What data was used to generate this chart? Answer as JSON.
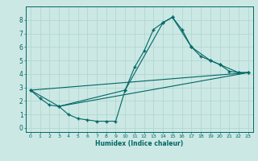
{
  "xlabel": "Humidex (Indice chaleur)",
  "bg_color": "#cce8e4",
  "line_color": "#006666",
  "grid_color": "#b0d8d0",
  "xlim": [
    -0.5,
    23.5
  ],
  "ylim": [
    -0.3,
    9.0
  ],
  "line1_x": [
    0,
    1,
    2,
    3,
    4,
    5,
    6,
    7,
    8,
    9,
    10,
    11,
    12,
    13,
    14,
    15,
    16,
    17,
    18,
    19,
    20,
    21,
    22,
    23
  ],
  "line1_y": [
    2.8,
    2.2,
    1.7,
    1.6,
    1.0,
    0.7,
    0.6,
    0.5,
    0.5,
    0.5,
    2.8,
    4.5,
    5.7,
    7.3,
    7.8,
    8.2,
    7.3,
    6.0,
    5.3,
    5.0,
    4.7,
    4.2,
    4.1,
    4.1
  ],
  "line2_x": [
    0,
    3,
    10,
    14,
    15,
    17,
    19,
    20,
    22,
    23
  ],
  "line2_y": [
    2.8,
    1.6,
    2.8,
    7.8,
    8.2,
    6.0,
    5.0,
    4.7,
    4.1,
    4.1
  ],
  "line3_x": [
    0,
    23
  ],
  "line3_y": [
    2.8,
    4.1
  ],
  "line4_x": [
    3,
    23
  ],
  "line4_y": [
    1.6,
    4.1
  ],
  "xticks": [
    0,
    1,
    2,
    3,
    4,
    5,
    6,
    7,
    8,
    9,
    10,
    11,
    12,
    13,
    14,
    15,
    16,
    17,
    18,
    19,
    20,
    21,
    22,
    23
  ],
  "yticks": [
    0,
    1,
    2,
    3,
    4,
    5,
    6,
    7,
    8
  ]
}
